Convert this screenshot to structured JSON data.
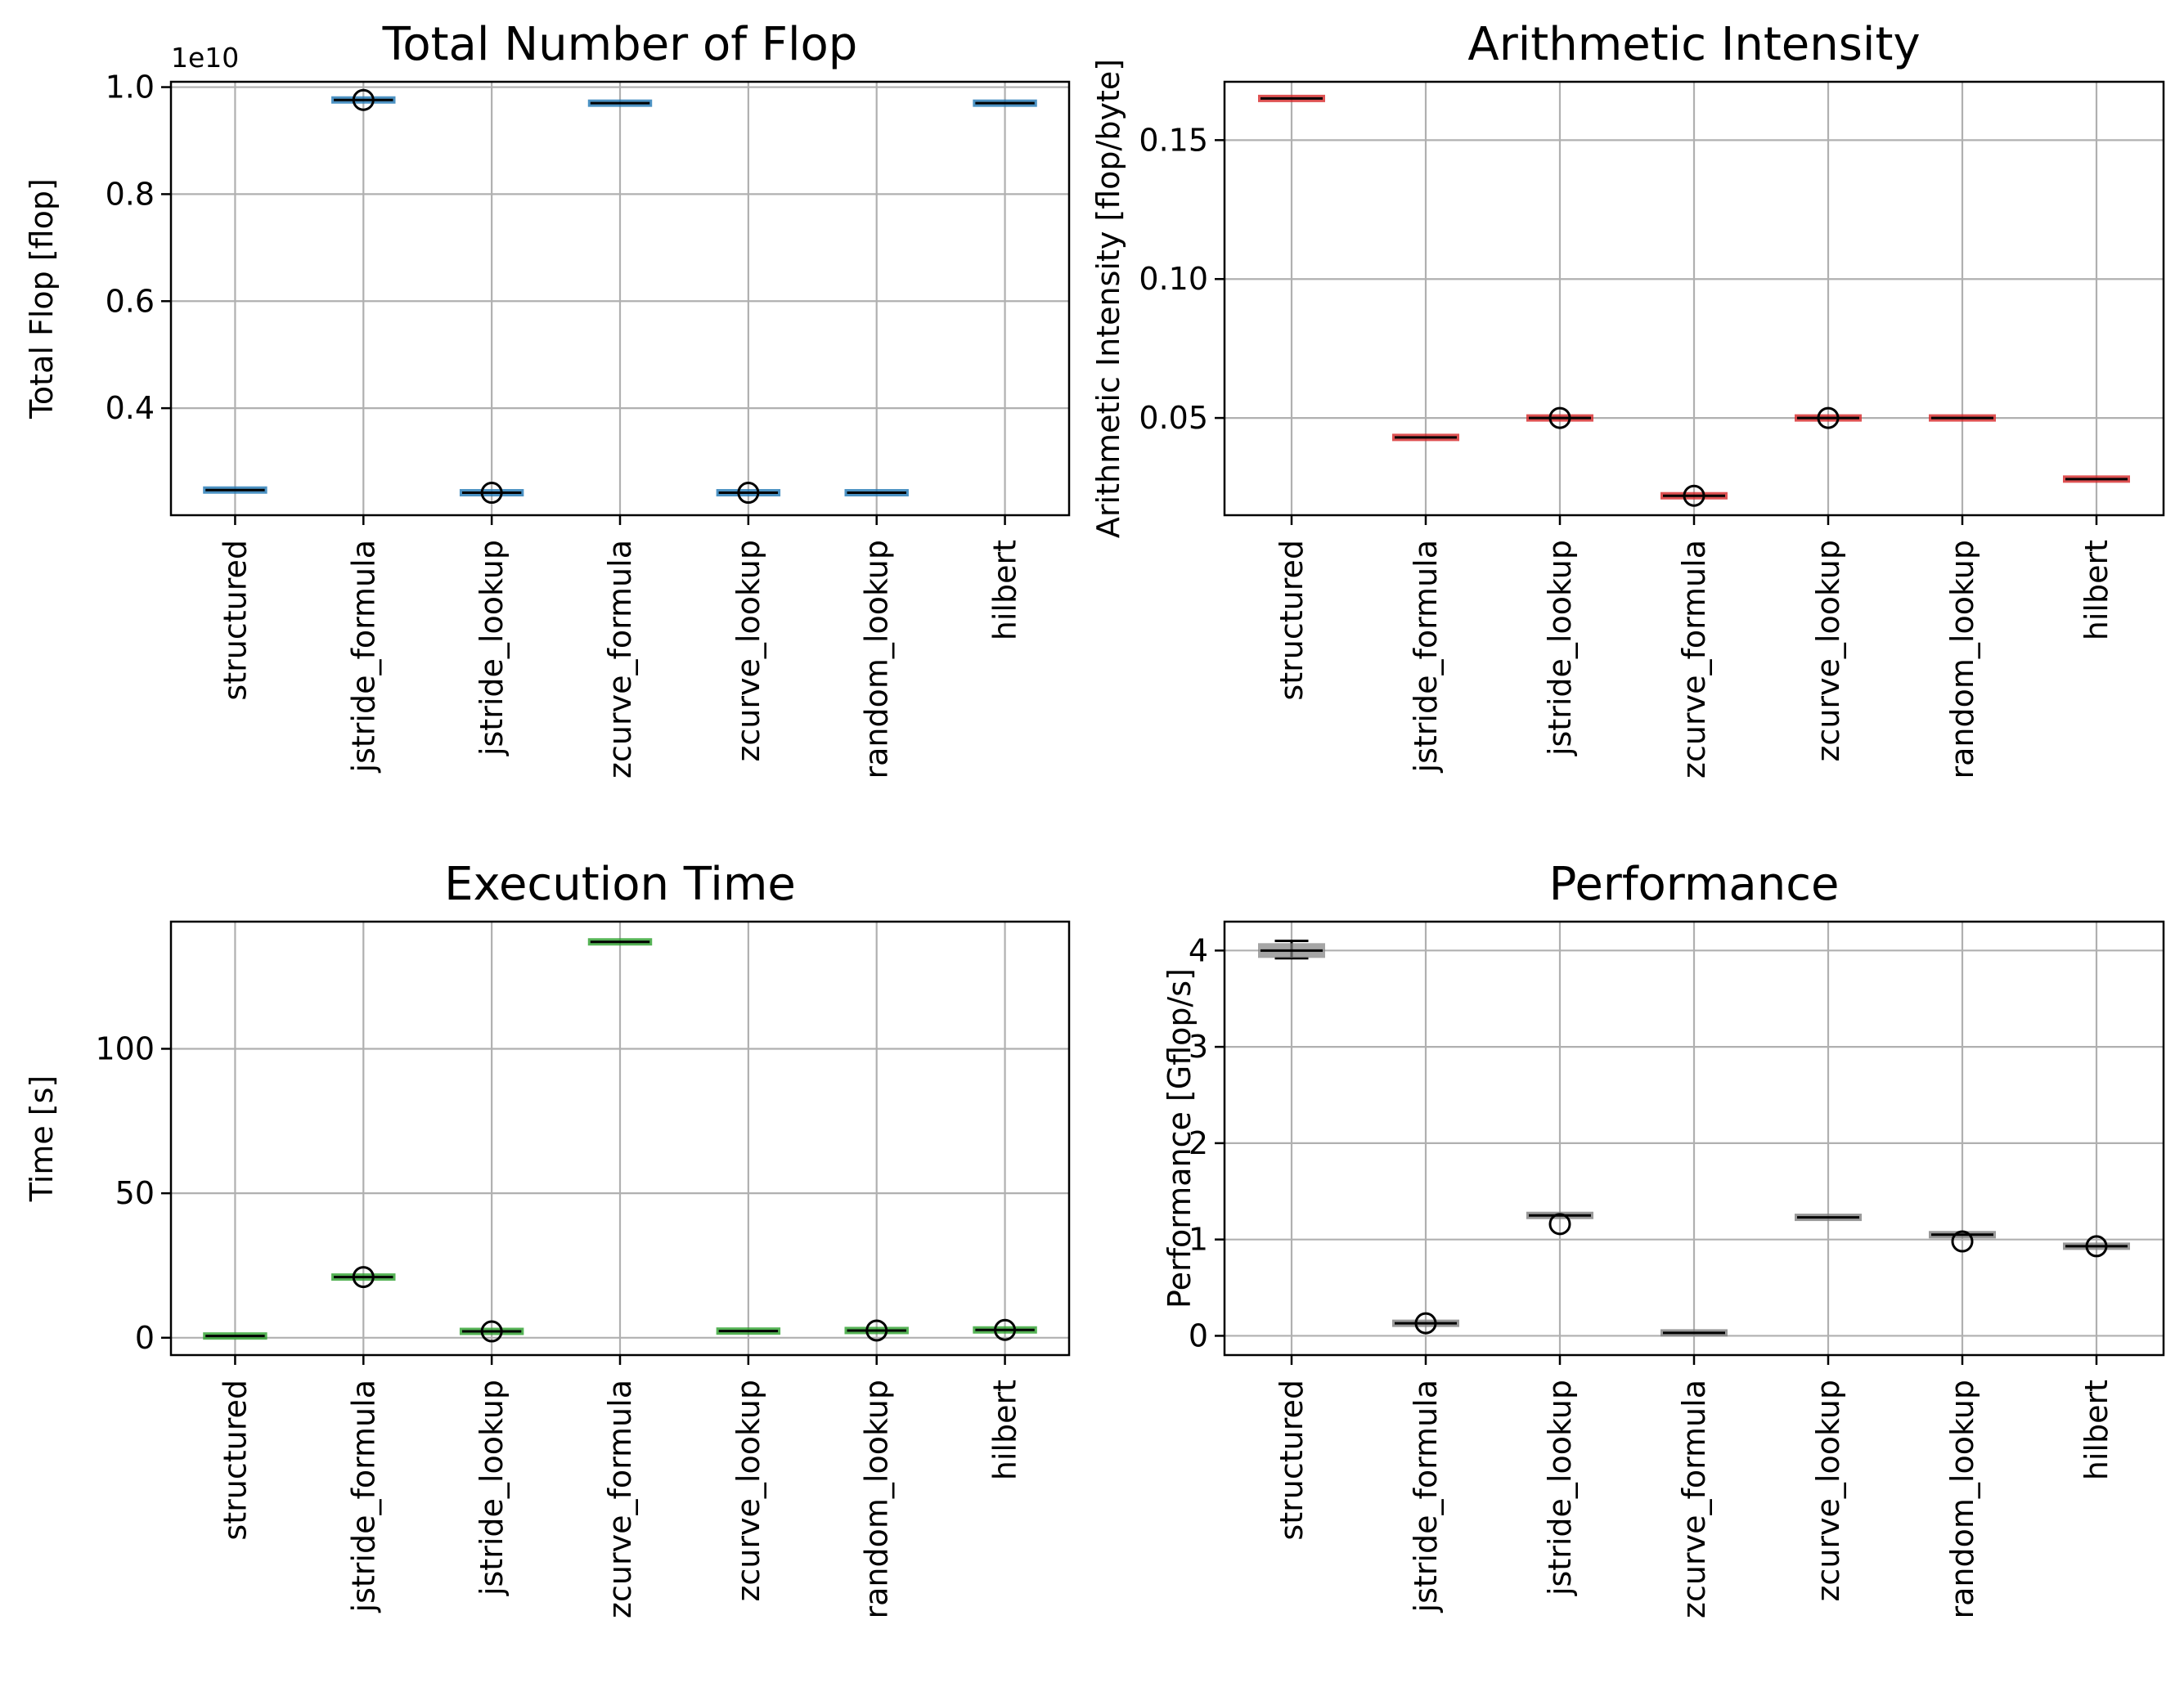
{
  "chart_data": [
    {
      "type": "box",
      "title": "Total Number of Flop",
      "ylabel": "Total Flop [flop]",
      "offset_text": "1e10",
      "scale": 10000000000.0,
      "ylim": [
        2000000000.0,
        10100000000.0
      ],
      "yticks": [
        4000000000.0,
        6000000000.0,
        8000000000.0,
        10000000000.0
      ],
      "ytick_labels": [
        "0.4",
        "0.6",
        "0.8",
        "1.0"
      ],
      "color": "#1f77b4",
      "categories": [
        "structured",
        "jstride_formula",
        "jstride_lookup",
        "zcurve_formula",
        "zcurve_lookup",
        "random_lookup",
        "hilbert"
      ],
      "values": [
        2470000000.0,
        9760000000.0,
        2420000000.0,
        9700000000.0,
        2420000000.0,
        2420000000.0,
        9700000000.0
      ],
      "outliers": [
        [],
        [
          9760000000.0
        ],
        [
          2420000000.0
        ],
        [],
        [
          2420000000.0
        ],
        [],
        []
      ]
    },
    {
      "type": "box",
      "title": "Arithmetic Intensity",
      "ylabel": "Arithmetic Intensity [flop/byte]",
      "ylim": [
        0.015,
        0.171
      ],
      "yticks": [
        0.05,
        0.1,
        0.15
      ],
      "ytick_labels": [
        "0.05",
        "0.10",
        "0.15"
      ],
      "color": "#d62728",
      "categories": [
        "structured",
        "jstride_formula",
        "jstride_lookup",
        "zcurve_formula",
        "zcurve_lookup",
        "random_lookup",
        "hilbert"
      ],
      "values": [
        0.165,
        0.043,
        0.05,
        0.022,
        0.05,
        0.05,
        0.028
      ],
      "outliers": [
        [],
        [],
        [
          0.05
        ],
        [
          0.022
        ],
        [
          0.05
        ],
        [],
        []
      ]
    },
    {
      "type": "box",
      "title": "Execution Time",
      "ylabel": "Time [s]",
      "ylim": [
        -6,
        144
      ],
      "yticks": [
        0,
        50,
        100
      ],
      "ytick_labels": [
        "0",
        "50",
        "100"
      ],
      "color": "#2ca02c",
      "categories": [
        "structured",
        "jstride_formula",
        "jstride_lookup",
        "zcurve_formula",
        "zcurve_lookup",
        "random_lookup",
        "hilbert"
      ],
      "values": [
        0.6,
        21,
        2.2,
        137,
        2.3,
        2.5,
        2.7
      ],
      "outliers": [
        [],
        [
          21
        ],
        [
          2.2
        ],
        [],
        [],
        [
          2.5
        ],
        [
          2.7
        ]
      ]
    },
    {
      "type": "box",
      "title": "Performance",
      "ylabel": "Performance [Gflop/s]",
      "ylim": [
        -0.2,
        4.3
      ],
      "yticks": [
        0,
        1,
        2,
        3,
        4
      ],
      "ytick_labels": [
        "0",
        "1",
        "2",
        "3",
        "4"
      ],
      "color": "#7f7f7f",
      "categories": [
        "structured",
        "jstride_formula",
        "jstride_lookup",
        "zcurve_formula",
        "zcurve_lookup",
        "random_lookup",
        "hilbert"
      ],
      "values": [
        4.0,
        0.13,
        1.25,
        0.03,
        1.23,
        1.05,
        0.93
      ],
      "whiskers": [
        [
          3.92,
          4.1
        ],
        null,
        null,
        null,
        null,
        null,
        null
      ],
      "outliers": [
        [],
        [
          0.13
        ],
        [
          1.16
        ],
        [],
        [],
        [
          0.98
        ],
        [
          0.93
        ]
      ]
    }
  ]
}
